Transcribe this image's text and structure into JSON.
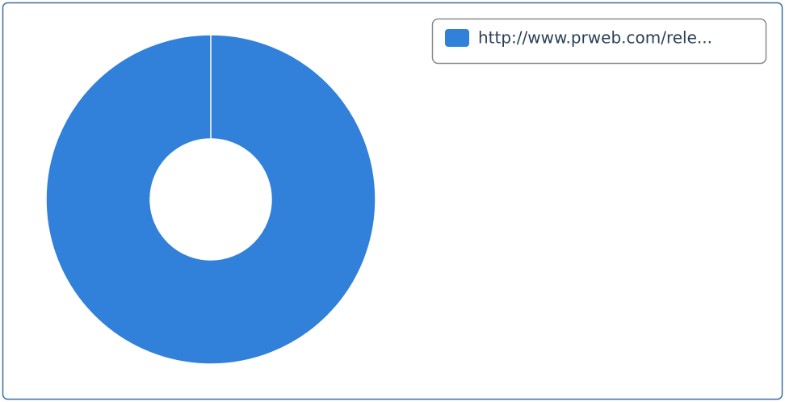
{
  "chart_data": {
    "type": "donut",
    "categories": [
      "http://www.prweb.com/rele..."
    ],
    "values": [
      100
    ],
    "colors": [
      "#3180d9"
    ],
    "legend": "top-right"
  }
}
